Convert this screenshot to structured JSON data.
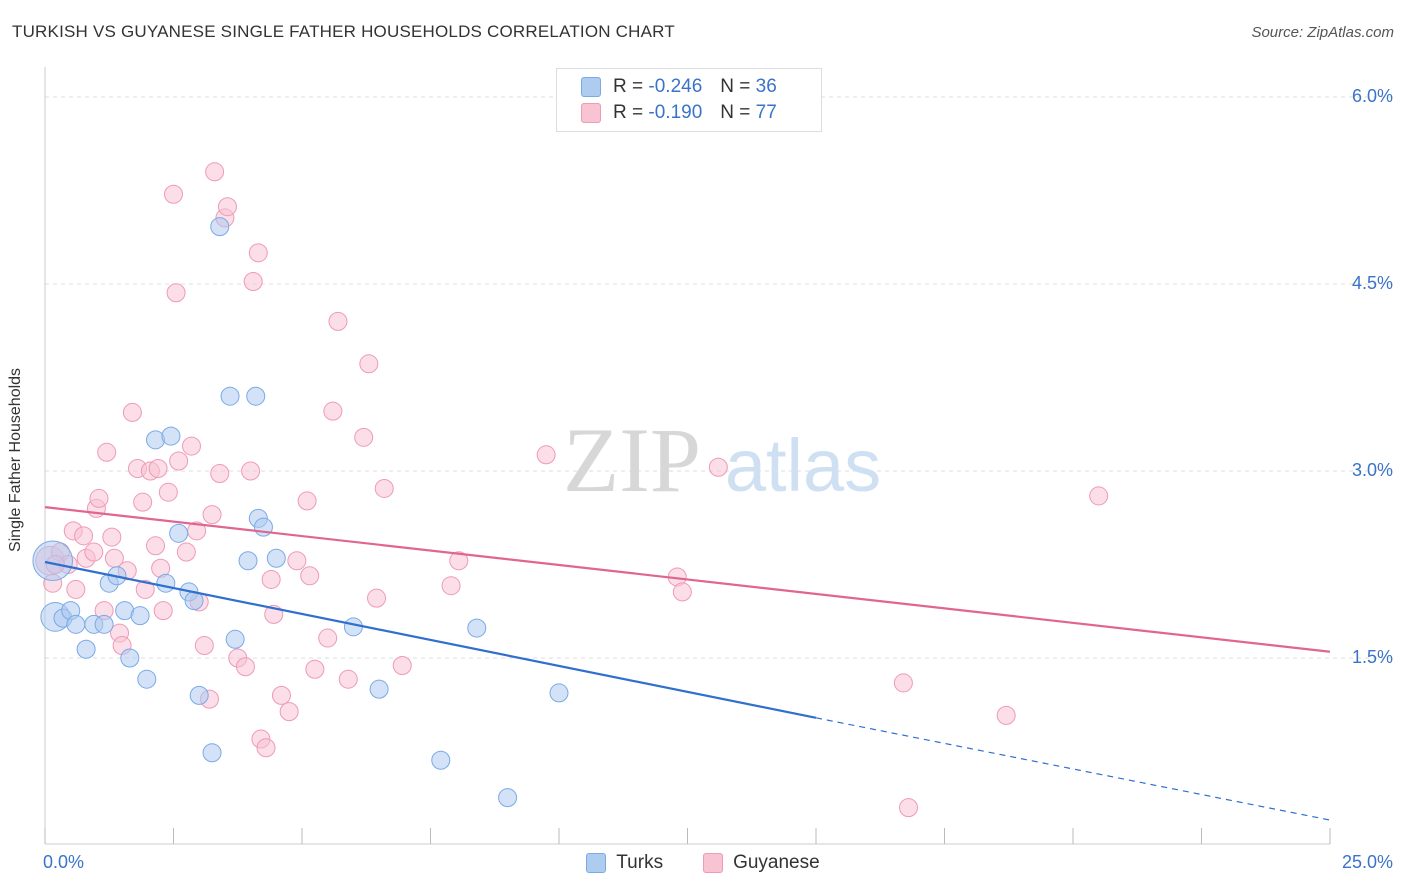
{
  "title": "TURKISH VS GUYANESE SINGLE FATHER HOUSEHOLDS CORRELATION CHART",
  "source": "Source: ZipAtlas.com",
  "watermark": {
    "zip": "ZIP",
    "atlas": "atlas"
  },
  "legend": {
    "turks": {
      "r_label": "R = ",
      "r_value": "-0.246",
      "n_label": "N = ",
      "n_value": "36"
    },
    "guyanese": {
      "r_label": "R = ",
      "r_value": "-0.190",
      "n_label": "N = ",
      "n_value": "77"
    }
  },
  "colors": {
    "turks_fill": "#aecbf0",
    "turks_stroke": "#7aaae6",
    "turks_line": "#2f6fce",
    "guyanese_fill": "#f8c3d3",
    "guyanese_stroke": "#ef9ab6",
    "guyanese_line": "#e0668f",
    "axis_label": "#3a73c9",
    "grid": "#dddddd"
  },
  "chart_data": {
    "type": "scatter",
    "title": "TURKISH VS GUYANESE SINGLE FATHER HOUSEHOLDS CORRELATION CHART",
    "xlabel": "",
    "ylabel": "Single Father Households",
    "xlim": [
      0,
      25
    ],
    "ylim": [
      0,
      6.2
    ],
    "x_tick_labels": [
      {
        "value": 0,
        "label": "0.0%"
      },
      {
        "value": 25,
        "label": "25.0%"
      }
    ],
    "y_tick_labels": [
      {
        "value": 1.5,
        "label": "1.5%"
      },
      {
        "value": 3.0,
        "label": "3.0%"
      },
      {
        "value": 4.5,
        "label": "4.5%"
      },
      {
        "value": 6.0,
        "label": "6.0%"
      }
    ],
    "series": [
      {
        "name": "Turks",
        "r": -0.246,
        "n": 36,
        "trend": {
          "x0": 0,
          "y0": 2.27,
          "x1": 15,
          "y1": 1.02,
          "dashed_to_x": 25,
          "dashed_to_y": 0.2
        },
        "points": [
          [
            0.15,
            2.28,
            2.2
          ],
          [
            0.2,
            1.83,
            1.6
          ],
          [
            0.35,
            1.82,
            1
          ],
          [
            0.5,
            1.88,
            1
          ],
          [
            0.6,
            1.77,
            1
          ],
          [
            0.8,
            1.57,
            1
          ],
          [
            0.95,
            1.77,
            1
          ],
          [
            1.15,
            1.77,
            1
          ],
          [
            1.25,
            2.1,
            1
          ],
          [
            1.4,
            2.16,
            1
          ],
          [
            1.55,
            1.88,
            1
          ],
          [
            1.65,
            1.5,
            1
          ],
          [
            1.85,
            1.84,
            1
          ],
          [
            1.98,
            1.33,
            1
          ],
          [
            2.15,
            3.25,
            1
          ],
          [
            2.35,
            2.1,
            1
          ],
          [
            2.45,
            3.28,
            1
          ],
          [
            2.6,
            2.5,
            1
          ],
          [
            2.8,
            2.03,
            1
          ],
          [
            2.9,
            1.96,
            1
          ],
          [
            3.0,
            1.2,
            1
          ],
          [
            3.25,
            0.74,
            1
          ],
          [
            3.4,
            4.96,
            1
          ],
          [
            3.6,
            3.6,
            1
          ],
          [
            3.7,
            1.65,
            1
          ],
          [
            3.95,
            2.28,
            1
          ],
          [
            4.1,
            3.6,
            1
          ],
          [
            4.15,
            2.62,
            1
          ],
          [
            4.25,
            2.55,
            1
          ],
          [
            4.5,
            2.3,
            1
          ],
          [
            6.0,
            1.75,
            1
          ],
          [
            6.5,
            1.25,
            1
          ],
          [
            7.7,
            0.68,
            1
          ],
          [
            8.4,
            1.74,
            1
          ],
          [
            9.0,
            0.38,
            1
          ],
          [
            10.0,
            1.22,
            1
          ]
        ]
      },
      {
        "name": "Guyanese",
        "r": -0.19,
        "n": 77,
        "trend": {
          "x0": 0,
          "y0": 2.71,
          "x1": 25,
          "y1": 1.55
        },
        "points": [
          [
            0.1,
            2.28,
            1.6
          ],
          [
            0.15,
            2.1,
            1
          ],
          [
            0.3,
            2.35,
            1
          ],
          [
            0.45,
            2.25,
            1
          ],
          [
            0.55,
            2.52,
            1
          ],
          [
            0.6,
            2.05,
            1
          ],
          [
            0.75,
            2.48,
            1
          ],
          [
            0.8,
            2.3,
            1
          ],
          [
            0.95,
            2.35,
            1
          ],
          [
            1.0,
            2.7,
            1
          ],
          [
            1.05,
            2.78,
            1
          ],
          [
            1.15,
            1.88,
            1
          ],
          [
            1.2,
            3.15,
            1
          ],
          [
            1.3,
            2.47,
            1
          ],
          [
            1.35,
            2.3,
            1
          ],
          [
            1.45,
            1.7,
            1
          ],
          [
            1.5,
            1.6,
            1
          ],
          [
            1.6,
            2.2,
            1
          ],
          [
            1.7,
            3.47,
            1
          ],
          [
            1.8,
            3.02,
            1
          ],
          [
            1.9,
            2.75,
            1
          ],
          [
            1.95,
            2.05,
            1
          ],
          [
            2.05,
            3.0,
            1
          ],
          [
            2.15,
            2.4,
            1
          ],
          [
            2.2,
            3.02,
            1
          ],
          [
            2.25,
            2.22,
            1
          ],
          [
            2.3,
            1.88,
            1
          ],
          [
            2.4,
            2.83,
            1
          ],
          [
            2.5,
            5.22,
            1
          ],
          [
            2.55,
            4.43,
            1
          ],
          [
            2.6,
            3.08,
            1
          ],
          [
            2.75,
            2.35,
            1
          ],
          [
            2.85,
            3.2,
            1
          ],
          [
            2.95,
            2.52,
            1
          ],
          [
            3.0,
            1.95,
            1
          ],
          [
            3.1,
            1.6,
            1
          ],
          [
            3.2,
            1.17,
            1
          ],
          [
            3.25,
            2.65,
            1
          ],
          [
            3.3,
            5.4,
            1
          ],
          [
            3.4,
            2.98,
            1
          ],
          [
            3.5,
            5.03,
            1
          ],
          [
            3.55,
            5.12,
            1
          ],
          [
            3.75,
            1.5,
            1
          ],
          [
            3.9,
            1.43,
            1
          ],
          [
            4.0,
            3.0,
            1
          ],
          [
            4.05,
            4.52,
            1
          ],
          [
            4.15,
            4.75,
            1
          ],
          [
            4.2,
            0.85,
            1
          ],
          [
            4.3,
            0.78,
            1
          ],
          [
            4.4,
            2.13,
            1
          ],
          [
            4.45,
            1.85,
            1
          ],
          [
            4.6,
            1.2,
            1
          ],
          [
            4.75,
            1.07,
            1
          ],
          [
            4.9,
            2.28,
            1
          ],
          [
            5.1,
            2.76,
            1
          ],
          [
            5.15,
            2.16,
            1
          ],
          [
            5.25,
            1.41,
            1
          ],
          [
            5.5,
            1.66,
            1
          ],
          [
            5.6,
            3.48,
            1
          ],
          [
            5.7,
            4.2,
            1
          ],
          [
            5.9,
            1.33,
            1
          ],
          [
            6.2,
            3.27,
            1
          ],
          [
            6.3,
            3.86,
            1
          ],
          [
            6.45,
            1.98,
            1
          ],
          [
            6.6,
            2.86,
            1
          ],
          [
            6.95,
            1.44,
            1
          ],
          [
            7.9,
            2.08,
            1
          ],
          [
            8.05,
            2.28,
            1
          ],
          [
            9.75,
            3.13,
            1
          ],
          [
            12.3,
            2.15,
            1
          ],
          [
            12.4,
            2.03,
            1
          ],
          [
            13.1,
            3.03,
            1
          ],
          [
            16.7,
            1.3,
            1
          ],
          [
            16.8,
            0.3,
            1
          ],
          [
            18.7,
            1.04,
            1
          ],
          [
            20.5,
            2.8,
            1
          ],
          [
            0.2,
            2.25,
            1
          ]
        ]
      }
    ],
    "grid": true,
    "legend_position": "top-center"
  },
  "bottom_legend": {
    "turks": "Turks",
    "guyanese": "Guyanese"
  }
}
